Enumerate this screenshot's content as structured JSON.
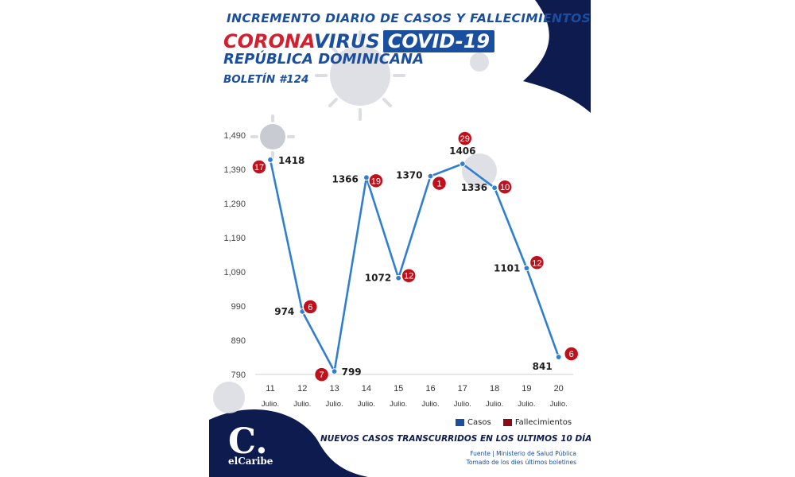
{
  "header": {
    "line1": "INCREMENTO DIARIO DE CASOS Y FALLECIMIENTOS",
    "corona": "CORONA",
    "virus": "VIRUS",
    "covid": "COVID-19",
    "line3": "REPÚBLICA DOMINICANA",
    "bulletin": "BOLETÍN #124"
  },
  "legend": {
    "cases": "Casos",
    "deaths": "Fallecimientos"
  },
  "footer": {
    "title": "NUEVOS CASOS TRANSCURRIDOS EN LOS ULTIMOS 10 DÍAS",
    "source_line1": "Fuente | Ministerio de Salud Pública",
    "source_line2": "Tomado de  los dies últimos boletines"
  },
  "logo": {
    "word": "elCaribe",
    "letter": "C."
  },
  "colors": {
    "brand_blue": "#1a4fa0",
    "navy": "#0d1b4f",
    "line": "#2f7fd1",
    "death_red": "#c0101c",
    "corona_red": "#d31f2e"
  },
  "chart_data": {
    "type": "line",
    "title": "INCREMENTO DIARIO DE CASOS Y FALLECIMIENTOS",
    "categories": [
      "11",
      "12",
      "13",
      "14",
      "15",
      "16",
      "17",
      "18",
      "19",
      "20"
    ],
    "category_sublabel": "Julio.",
    "y_ticks": [
      790,
      890,
      990,
      1090,
      1190,
      1290,
      1390,
      1490
    ],
    "y_tick_labels": [
      "790",
      "890",
      "990",
      "1,090",
      "1,190",
      "1,290",
      "1,390",
      "1,490"
    ],
    "ylim": [
      790,
      1490
    ],
    "grid": false,
    "legend_position": "bottom-right",
    "series": [
      {
        "name": "Casos",
        "color": "#2f7fd1",
        "values": [
          1418,
          974,
          799,
          1366,
          1072,
          1370,
          1406,
          1336,
          1101,
          841
        ]
      },
      {
        "name": "Fallecimientos",
        "color": "#c0101c",
        "values": [
          17,
          6,
          7,
          19,
          12,
          1,
          29,
          10,
          12,
          6
        ]
      }
    ]
  }
}
